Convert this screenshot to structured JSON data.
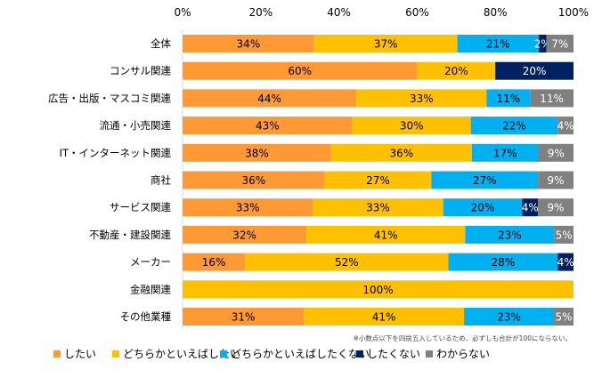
{
  "chart_data": {
    "type": "bar",
    "orientation": "horizontal",
    "stacked": true,
    "xlim": [
      0,
      100
    ],
    "x_ticks": [
      "0%",
      "20%",
      "40%",
      "60%",
      "80%",
      "100%"
    ],
    "categories": [
      "全体",
      "コンサル関連",
      "広告・出版・マスコミ関連",
      "流通・小売関連",
      "IT・インターネット関連",
      "商社",
      "サービス関連",
      "不動産・建設関連",
      "メーカー",
      "金融関連",
      "その他業種"
    ],
    "series": [
      {
        "name": "したい",
        "color": "#FF9933",
        "values": [
          34,
          60,
          44,
          43,
          38,
          36,
          33,
          32,
          16,
          0,
          31
        ]
      },
      {
        "name": "どちらかといえばしたい",
        "color": "#FFC000",
        "values": [
          37,
          20,
          33,
          30,
          36,
          27,
          33,
          41,
          52,
          100,
          41
        ]
      },
      {
        "name": "どちらかといえばしたくない",
        "color": "#00B0F0",
        "values": [
          21,
          0,
          11,
          22,
          17,
          27,
          20,
          23,
          28,
          0,
          23
        ]
      },
      {
        "name": "したくない",
        "color": "#002060",
        "values": [
          2,
          20,
          0,
          0,
          0,
          0,
          4,
          0,
          4,
          0,
          0
        ]
      },
      {
        "name": "わからない",
        "color": "#808080",
        "values": [
          7,
          0,
          11,
          4,
          9,
          9,
          9,
          5,
          0,
          0,
          5
        ]
      }
    ],
    "legend_position": "bottom",
    "grid": false,
    "footnote": "※小数点以下を四捨五入しているため、必ずしも合計が100にならない。"
  }
}
